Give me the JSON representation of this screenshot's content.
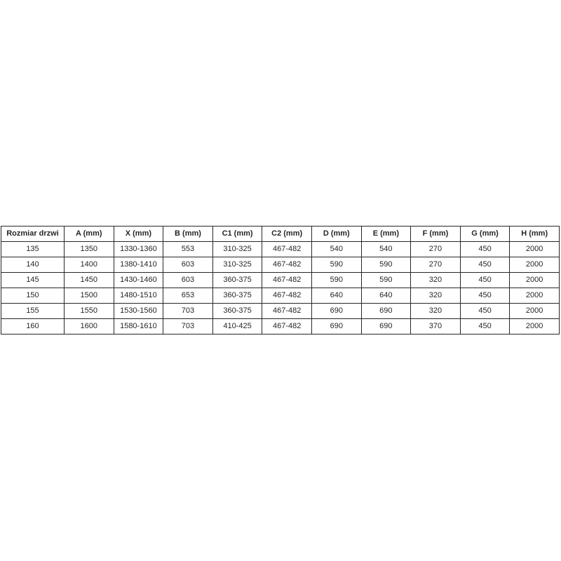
{
  "chart_data": {
    "type": "table",
    "title": "",
    "columns": [
      "Rozmiar drzwi",
      "A (mm)",
      "X (mm)",
      "B (mm)",
      "C1 (mm)",
      "C2 (mm)",
      "D (mm)",
      "E (mm)",
      "F (mm)",
      "G (mm)",
      "H (mm)"
    ],
    "rows": [
      [
        "135",
        "1350",
        "1330-1360",
        "553",
        "310-325",
        "467-482",
        "540",
        "540",
        "270",
        "450",
        "2000"
      ],
      [
        "140",
        "1400",
        "1380-1410",
        "603",
        "310-325",
        "467-482",
        "590",
        "590",
        "270",
        "450",
        "2000"
      ],
      [
        "145",
        "1450",
        "1430-1460",
        "603",
        "360-375",
        "467-482",
        "590",
        "590",
        "320",
        "450",
        "2000"
      ],
      [
        "150",
        "1500",
        "1480-1510",
        "653",
        "360-375",
        "467-482",
        "640",
        "640",
        "320",
        "450",
        "2000"
      ],
      [
        "155",
        "1550",
        "1530-1560",
        "703",
        "360-375",
        "467-482",
        "690",
        "690",
        "320",
        "450",
        "2000"
      ],
      [
        "160",
        "1600",
        "1580-1610",
        "703",
        "410-425",
        "467-482",
        "690",
        "690",
        "370",
        "450",
        "2000"
      ]
    ],
    "layout": {
      "grid": true,
      "header_bold": true,
      "text_color": "#262626",
      "border_color": "#262626",
      "background": "#ffffff"
    }
  }
}
